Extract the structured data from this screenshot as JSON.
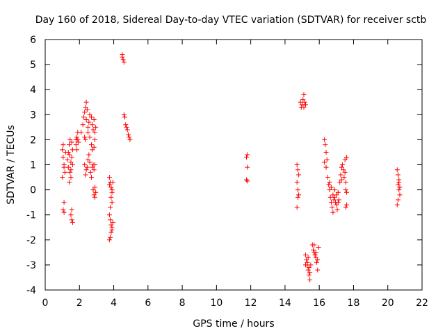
{
  "chart_data": {
    "type": "scatter",
    "title": "Day 160 of 2018, Sidereal Day-to-day VTEC variation (SDTVAR) for receiver sctb",
    "xlabel": "GPS time / hours",
    "ylabel": "SDTVAR / TECUs",
    "xlim": [
      0,
      22
    ],
    "ylim": [
      -4,
      6
    ],
    "xticks": [
      0,
      2,
      4,
      6,
      8,
      10,
      12,
      14,
      16,
      18,
      20,
      22
    ],
    "yticks": [
      -4,
      -3,
      -2,
      -1,
      0,
      1,
      2,
      3,
      4,
      5,
      6
    ],
    "marker": "+",
    "marker_color": "#ff0000",
    "grid": false,
    "series": [
      {
        "name": "SDTVAR",
        "points": [
          [
            1.0,
            1.6
          ],
          [
            1.05,
            1.3
          ],
          [
            1.1,
            1.0
          ],
          [
            1.15,
            0.7
          ],
          [
            1.0,
            0.5
          ],
          [
            1.1,
            0.9
          ],
          [
            1.2,
            1.5
          ],
          [
            1.05,
            1.8
          ],
          [
            1.1,
            -0.5
          ],
          [
            1.05,
            -0.8
          ],
          [
            1.1,
            -0.9
          ],
          [
            1.3,
            1.2
          ],
          [
            1.35,
            1.5
          ],
          [
            1.4,
            1.8
          ],
          [
            1.45,
            2.0
          ],
          [
            1.4,
            1.4
          ],
          [
            1.5,
            1.1
          ],
          [
            1.35,
            0.9
          ],
          [
            1.45,
            0.7
          ],
          [
            1.5,
            0.5
          ],
          [
            1.4,
            0.3
          ],
          [
            1.55,
            1.9
          ],
          [
            1.6,
            1.6
          ],
          [
            1.55,
            1.3
          ],
          [
            1.6,
            1.0
          ],
          [
            1.5,
            0.8
          ],
          [
            1.55,
            -0.8
          ],
          [
            1.5,
            -1.0
          ],
          [
            1.55,
            -1.2
          ],
          [
            1.6,
            -1.3
          ],
          [
            1.8,
            1.8
          ],
          [
            1.85,
            2.1
          ],
          [
            1.9,
            2.3
          ],
          [
            1.85,
            1.6
          ],
          [
            1.9,
            2.0
          ],
          [
            1.95,
            1.9
          ],
          [
            1.8,
            2.0
          ],
          [
            2.1,
            2.3
          ],
          [
            2.2,
            2.6
          ],
          [
            2.25,
            2.9
          ],
          [
            2.3,
            3.1
          ],
          [
            2.35,
            3.3
          ],
          [
            2.4,
            3.5
          ],
          [
            2.45,
            3.2
          ],
          [
            2.4,
            2.8
          ],
          [
            2.5,
            2.5
          ],
          [
            2.55,
            2.7
          ],
          [
            2.6,
            3.0
          ],
          [
            2.7,
            2.9
          ],
          [
            2.75,
            2.6
          ],
          [
            2.8,
            2.4
          ],
          [
            2.85,
            2.8
          ],
          [
            2.9,
            2.3
          ],
          [
            2.95,
            2.5
          ],
          [
            2.3,
            2.1
          ],
          [
            2.35,
            2.0
          ],
          [
            2.5,
            2.3
          ],
          [
            2.3,
            1.0
          ],
          [
            2.4,
            0.8
          ],
          [
            2.35,
            0.6
          ],
          [
            2.5,
            1.2
          ],
          [
            2.55,
            1.4
          ],
          [
            2.45,
            0.9
          ],
          [
            2.6,
            1.1
          ],
          [
            2.65,
            0.7
          ],
          [
            2.7,
            0.5
          ],
          [
            2.75,
            0.9
          ],
          [
            2.8,
            1.0
          ],
          [
            2.85,
            0.8
          ],
          [
            2.9,
            1.0
          ],
          [
            2.6,
            2.1
          ],
          [
            2.7,
            1.8
          ],
          [
            2.75,
            1.6
          ],
          [
            2.85,
            1.7
          ],
          [
            2.9,
            2.0
          ],
          [
            2.8,
            0.0
          ],
          [
            2.85,
            -0.2
          ],
          [
            2.9,
            -0.3
          ],
          [
            2.95,
            -0.1
          ],
          [
            2.9,
            0.1
          ],
          [
            3.75,
            0.5
          ],
          [
            3.8,
            0.3
          ],
          [
            3.85,
            0.1
          ],
          [
            3.9,
            -0.1
          ],
          [
            3.85,
            -0.3
          ],
          [
            3.9,
            -0.5
          ],
          [
            3.8,
            -0.7
          ],
          [
            3.75,
            0.2
          ],
          [
            3.95,
            0.3
          ],
          [
            3.9,
            0.0
          ],
          [
            3.75,
            -1.0
          ],
          [
            3.8,
            -1.2
          ],
          [
            3.85,
            -1.4
          ],
          [
            3.9,
            -1.5
          ],
          [
            3.85,
            -1.7
          ],
          [
            3.8,
            -1.9
          ],
          [
            3.75,
            -2.0
          ],
          [
            3.95,
            -1.3
          ],
          [
            3.9,
            -1.6
          ],
          [
            4.5,
            5.3
          ],
          [
            4.55,
            5.2
          ],
          [
            4.6,
            5.1
          ],
          [
            4.5,
            5.4
          ],
          [
            4.6,
            3.0
          ],
          [
            4.65,
            2.9
          ],
          [
            4.7,
            2.6
          ],
          [
            4.75,
            2.5
          ],
          [
            4.8,
            2.4
          ],
          [
            4.85,
            2.2
          ],
          [
            4.9,
            2.1
          ],
          [
            4.95,
            2.0
          ],
          [
            11.8,
            1.4
          ],
          [
            11.75,
            1.3
          ],
          [
            11.8,
            0.9
          ],
          [
            11.75,
            0.4
          ],
          [
            11.8,
            0.35
          ],
          [
            14.7,
            1.0
          ],
          [
            14.75,
            0.8
          ],
          [
            14.8,
            0.6
          ],
          [
            14.7,
            0.3
          ],
          [
            14.75,
            0.0
          ],
          [
            14.8,
            -0.2
          ],
          [
            14.75,
            -0.3
          ],
          [
            14.7,
            -0.7
          ],
          [
            14.9,
            3.5
          ],
          [
            14.95,
            3.3
          ],
          [
            15.0,
            3.4
          ],
          [
            15.05,
            3.6
          ],
          [
            15.1,
            3.8
          ],
          [
            15.15,
            3.5
          ],
          [
            15.2,
            3.4
          ],
          [
            15.1,
            3.3
          ],
          [
            15.2,
            -2.6
          ],
          [
            15.25,
            -2.8
          ],
          [
            15.3,
            -3.0
          ],
          [
            15.35,
            -3.2
          ],
          [
            15.4,
            -3.4
          ],
          [
            15.45,
            -3.6
          ],
          [
            15.3,
            -2.9
          ],
          [
            15.4,
            -3.1
          ],
          [
            15.5,
            -3.0
          ],
          [
            15.2,
            -3.0
          ],
          [
            15.35,
            -2.7
          ],
          [
            15.45,
            -3.3
          ],
          [
            15.6,
            -2.2
          ],
          [
            15.65,
            -2.4
          ],
          [
            15.7,
            -2.5
          ],
          [
            15.75,
            -2.6
          ],
          [
            15.8,
            -2.7
          ],
          [
            15.85,
            -2.9
          ],
          [
            15.9,
            -3.2
          ],
          [
            15.95,
            -2.3
          ],
          [
            15.7,
            -2.2
          ],
          [
            15.8,
            -2.5
          ],
          [
            15.9,
            -2.8
          ],
          [
            16.3,
            2.0
          ],
          [
            16.35,
            1.8
          ],
          [
            16.4,
            1.5
          ],
          [
            16.45,
            1.2
          ],
          [
            16.3,
            1.1
          ],
          [
            16.4,
            0.9
          ],
          [
            16.5,
            0.5
          ],
          [
            16.55,
            0.2
          ],
          [
            16.6,
            0.0
          ],
          [
            16.65,
            -0.3
          ],
          [
            16.7,
            -0.5
          ],
          [
            16.75,
            -0.7
          ],
          [
            16.8,
            -0.9
          ],
          [
            16.6,
            0.3
          ],
          [
            16.7,
            0.1
          ],
          [
            16.8,
            -0.2
          ],
          [
            16.85,
            -0.4
          ],
          [
            16.9,
            -0.3
          ],
          [
            16.95,
            -0.5
          ],
          [
            17.0,
            -0.6
          ],
          [
            17.05,
            -0.8
          ],
          [
            17.1,
            -0.5
          ],
          [
            17.15,
            -0.4
          ],
          [
            17.0,
            -0.2
          ],
          [
            17.1,
            -0.1
          ],
          [
            16.9,
            0.0
          ],
          [
            17.2,
            0.3
          ],
          [
            17.25,
            0.6
          ],
          [
            17.3,
            0.9
          ],
          [
            17.35,
            1.0
          ],
          [
            17.4,
            0.8
          ],
          [
            17.45,
            0.5
          ],
          [
            17.5,
            0.7
          ],
          [
            17.3,
            0.4
          ],
          [
            17.55,
            0.3
          ],
          [
            17.5,
            1.2
          ],
          [
            17.6,
            1.3
          ],
          [
            17.55,
            0.0
          ],
          [
            17.6,
            -0.1
          ],
          [
            17.55,
            -0.7
          ],
          [
            17.6,
            -0.6
          ],
          [
            20.55,
            0.8
          ],
          [
            20.6,
            0.6
          ],
          [
            20.65,
            0.4
          ],
          [
            20.6,
            0.2
          ],
          [
            20.65,
            0.0
          ],
          [
            20.7,
            -0.2
          ],
          [
            20.6,
            -0.4
          ],
          [
            20.55,
            -0.6
          ],
          [
            20.7,
            0.1
          ],
          [
            20.65,
            0.3
          ]
        ]
      }
    ]
  }
}
